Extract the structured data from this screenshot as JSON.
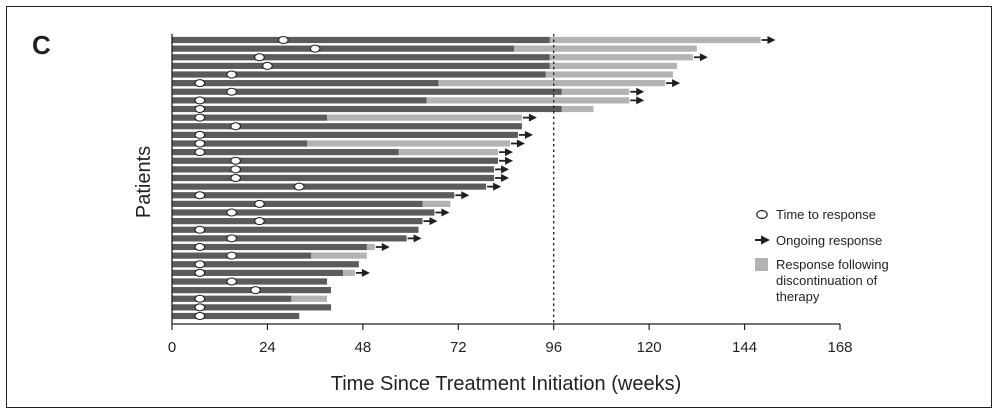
{
  "panel_label": "C",
  "chart_data": {
    "type": "bar",
    "orientation": "horizontal",
    "stacked": true,
    "xlabel": "Time Since Treatment Initiation (weeks)",
    "ylabel": "Patients",
    "xlim": [
      0,
      168
    ],
    "xticks": [
      0,
      24,
      48,
      72,
      96,
      120,
      144,
      168
    ],
    "reference_line": {
      "x": 96,
      "style": "dotted"
    },
    "colors": {
      "on_therapy": "#5b5b5b",
      "after_discontinuation": "#b3b3b3",
      "marker": "#ffffff",
      "ink": "#231f20"
    },
    "legend": {
      "placement": "right",
      "items": [
        {
          "marker": "ellipse",
          "label": "Time to response"
        },
        {
          "marker": "arrow",
          "label": "Ongoing response"
        },
        {
          "marker": "square",
          "label_lines": [
            "Response following",
            "discontinuation of",
            "therapy"
          ]
        }
      ]
    },
    "series_keys": [
      "on_therapy",
      "after_discontinuation"
    ],
    "patients": [
      {
        "on_therapy": 95,
        "total": 148,
        "response": 28,
        "ongoing": true
      },
      {
        "on_therapy": 86,
        "total": 132,
        "response": 36,
        "ongoing": false
      },
      {
        "on_therapy": 95,
        "total": 131,
        "response": 22,
        "ongoing": true
      },
      {
        "on_therapy": 95,
        "total": 127,
        "response": 24,
        "ongoing": false
      },
      {
        "on_therapy": 94,
        "total": 126,
        "response": 15,
        "ongoing": false
      },
      {
        "on_therapy": 67,
        "total": 124,
        "response": 7,
        "ongoing": true
      },
      {
        "on_therapy": 98,
        "total": 115,
        "response": 15,
        "ongoing": true
      },
      {
        "on_therapy": 64,
        "total": 115,
        "response": 7,
        "ongoing": true
      },
      {
        "on_therapy": 98,
        "total": 106,
        "response": 7,
        "ongoing": false
      },
      {
        "on_therapy": 39,
        "total": 88,
        "response": 7,
        "ongoing": true
      },
      {
        "on_therapy": 88,
        "total": 88,
        "response": 16,
        "ongoing": false
      },
      {
        "on_therapy": 87,
        "total": 87,
        "response": 7,
        "ongoing": true
      },
      {
        "on_therapy": 34,
        "total": 85,
        "response": 7,
        "ongoing": true
      },
      {
        "on_therapy": 57,
        "total": 82,
        "response": 7,
        "ongoing": true
      },
      {
        "on_therapy": 82,
        "total": 82,
        "response": 16,
        "ongoing": true
      },
      {
        "on_therapy": 81,
        "total": 81,
        "response": 16,
        "ongoing": true
      },
      {
        "on_therapy": 81,
        "total": 81,
        "response": 16,
        "ongoing": true
      },
      {
        "on_therapy": 79,
        "total": 79,
        "response": 32,
        "ongoing": true
      },
      {
        "on_therapy": 71,
        "total": 71,
        "response": 7,
        "ongoing": true
      },
      {
        "on_therapy": 63,
        "total": 70,
        "response": 22,
        "ongoing": false
      },
      {
        "on_therapy": 66,
        "total": 66,
        "response": 15,
        "ongoing": true
      },
      {
        "on_therapy": 63,
        "total": 63,
        "response": 22,
        "ongoing": true
      },
      {
        "on_therapy": 62,
        "total": 62,
        "response": 7,
        "ongoing": false
      },
      {
        "on_therapy": 59,
        "total": 59,
        "response": 15,
        "ongoing": true
      },
      {
        "on_therapy": 49,
        "total": 51,
        "response": 7,
        "ongoing": true
      },
      {
        "on_therapy": 35,
        "total": 49,
        "response": 15,
        "ongoing": false
      },
      {
        "on_therapy": 47,
        "total": 47,
        "response": 7,
        "ongoing": false
      },
      {
        "on_therapy": 43,
        "total": 46,
        "response": 7,
        "ongoing": true
      },
      {
        "on_therapy": 39,
        "total": 39,
        "response": 15,
        "ongoing": false
      },
      {
        "on_therapy": 40,
        "total": 40,
        "response": 21,
        "ongoing": false
      },
      {
        "on_therapy": 30,
        "total": 39,
        "response": 7,
        "ongoing": false
      },
      {
        "on_therapy": 40,
        "total": 40,
        "response": 7,
        "ongoing": false
      },
      {
        "on_therapy": 32,
        "total": 32,
        "response": 7,
        "ongoing": false
      }
    ]
  }
}
